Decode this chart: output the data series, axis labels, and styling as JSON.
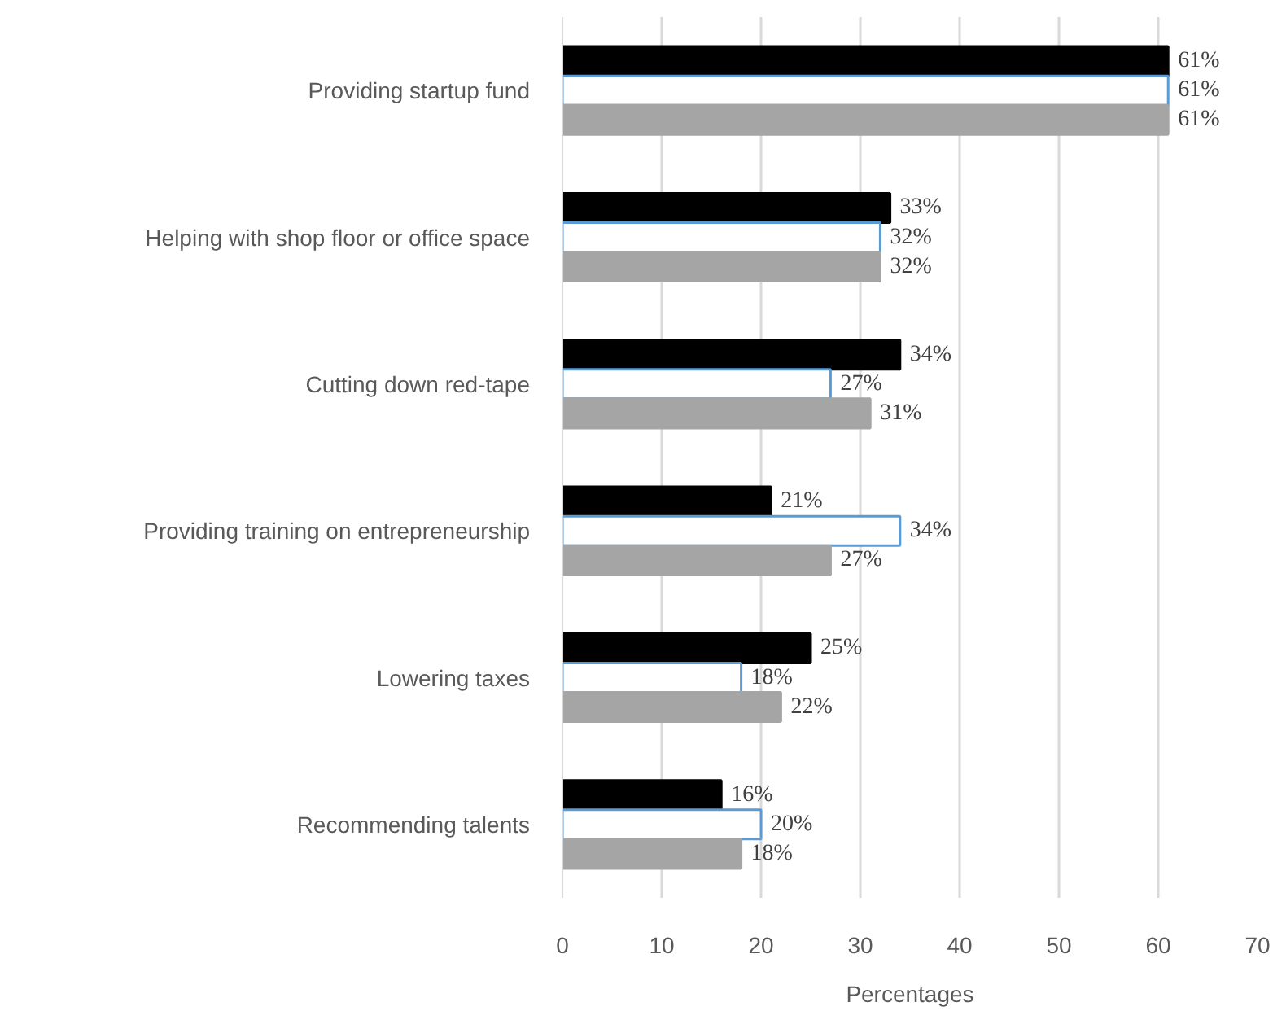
{
  "chart_data": {
    "type": "bar",
    "orientation": "horizontal",
    "xlabel": "Percentages",
    "categories": [
      "Providing startup fund",
      "Helping with shop floor or office space",
      "Cutting down red-tape",
      "Providing training on entrepreneurship",
      "Lowering taxes",
      "Recommending talents"
    ],
    "series": [
      {
        "color": "#000000",
        "values": [
          61,
          33,
          34,
          21,
          25,
          16
        ],
        "value_labels": [
          "61%",
          "33%",
          "34%",
          "21%",
          "25%",
          "16%"
        ]
      },
      {
        "color": "#ffffff",
        "values": [
          61,
          32,
          27,
          34,
          18,
          20
        ],
        "value_labels": [
          "61%",
          "32%",
          "27%",
          "34%",
          "18%",
          "20%"
        ]
      },
      {
        "color": "#a5a5a5",
        "values": [
          61,
          32,
          31,
          27,
          22,
          18
        ],
        "value_labels": [
          "61%",
          "32%",
          "31%",
          "27%",
          "22%",
          "18%"
        ]
      }
    ],
    "xlim": [
      0,
      70
    ],
    "xticks": [
      0,
      10,
      20,
      30,
      40,
      50,
      60,
      70
    ],
    "grid": "x",
    "legend": false
  }
}
